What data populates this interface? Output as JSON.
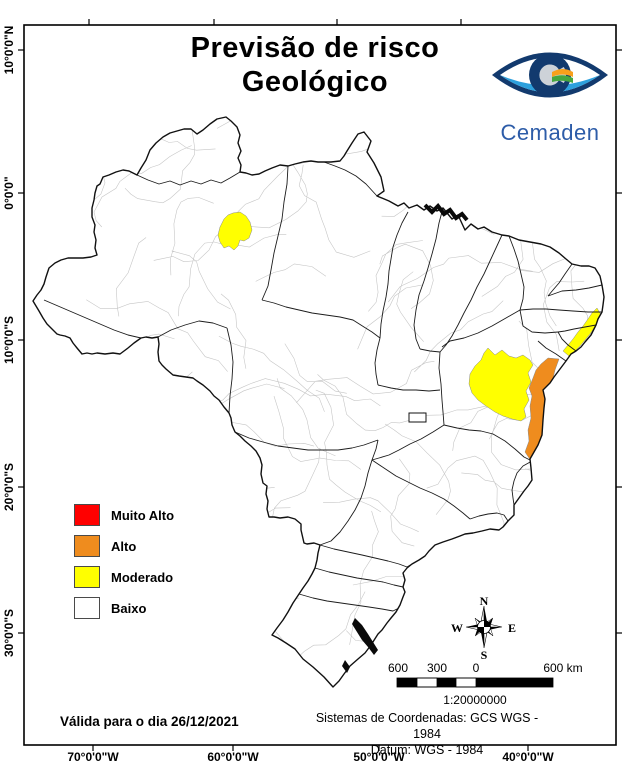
{
  "title": {
    "line1": "Previsão de risco",
    "line2": "Geológico"
  },
  "logo": {
    "text": "Cemaden"
  },
  "legend": {
    "items": [
      {
        "label": "Muito Alto",
        "color": "#FF0000"
      },
      {
        "label": "Alto",
        "color": "#EF8C1E"
      },
      {
        "label": "Moderado",
        "color": "#FFFF00"
      },
      {
        "label": "Baixo",
        "color": "#FFFFFF"
      }
    ]
  },
  "map": {
    "risk_regions": [
      {
        "name": "amazonas-municipality",
        "level": "Moderado",
        "color": "#FFFF00"
      },
      {
        "name": "bahia-interior",
        "level": "Moderado",
        "color": "#FFFF00"
      },
      {
        "name": "bahia-coast",
        "level": "Alto",
        "color": "#EF8C1E"
      },
      {
        "name": "alagoas-coast",
        "level": "Moderado",
        "color": "#FFFF00"
      }
    ],
    "border_color": "#111111",
    "municipal_line_color": "#c6c6c6"
  },
  "axes": {
    "left": [
      "10°0'0\"N",
      "0°0'0\"",
      "10°0'0\"S",
      "20°0'0\"S",
      "30°0'0\"S"
    ],
    "bottom": [
      "70°0'0\"W",
      "60°0'0\"W",
      "50°0'0\"W",
      "40°0'0\"W"
    ]
  },
  "compass": {
    "n": "N",
    "s": "S",
    "e": "E",
    "w": "W"
  },
  "scalebar": {
    "labels": [
      "600",
      "300",
      "0",
      "600 km"
    ],
    "ratio": "1:20000000"
  },
  "footer": {
    "valid_date": "Válida para o dia 26/12/2021",
    "coord_system": "Sistemas de Coordenadas: GCS WGS - 1984",
    "datum": "Datum: WGS - 1984"
  }
}
